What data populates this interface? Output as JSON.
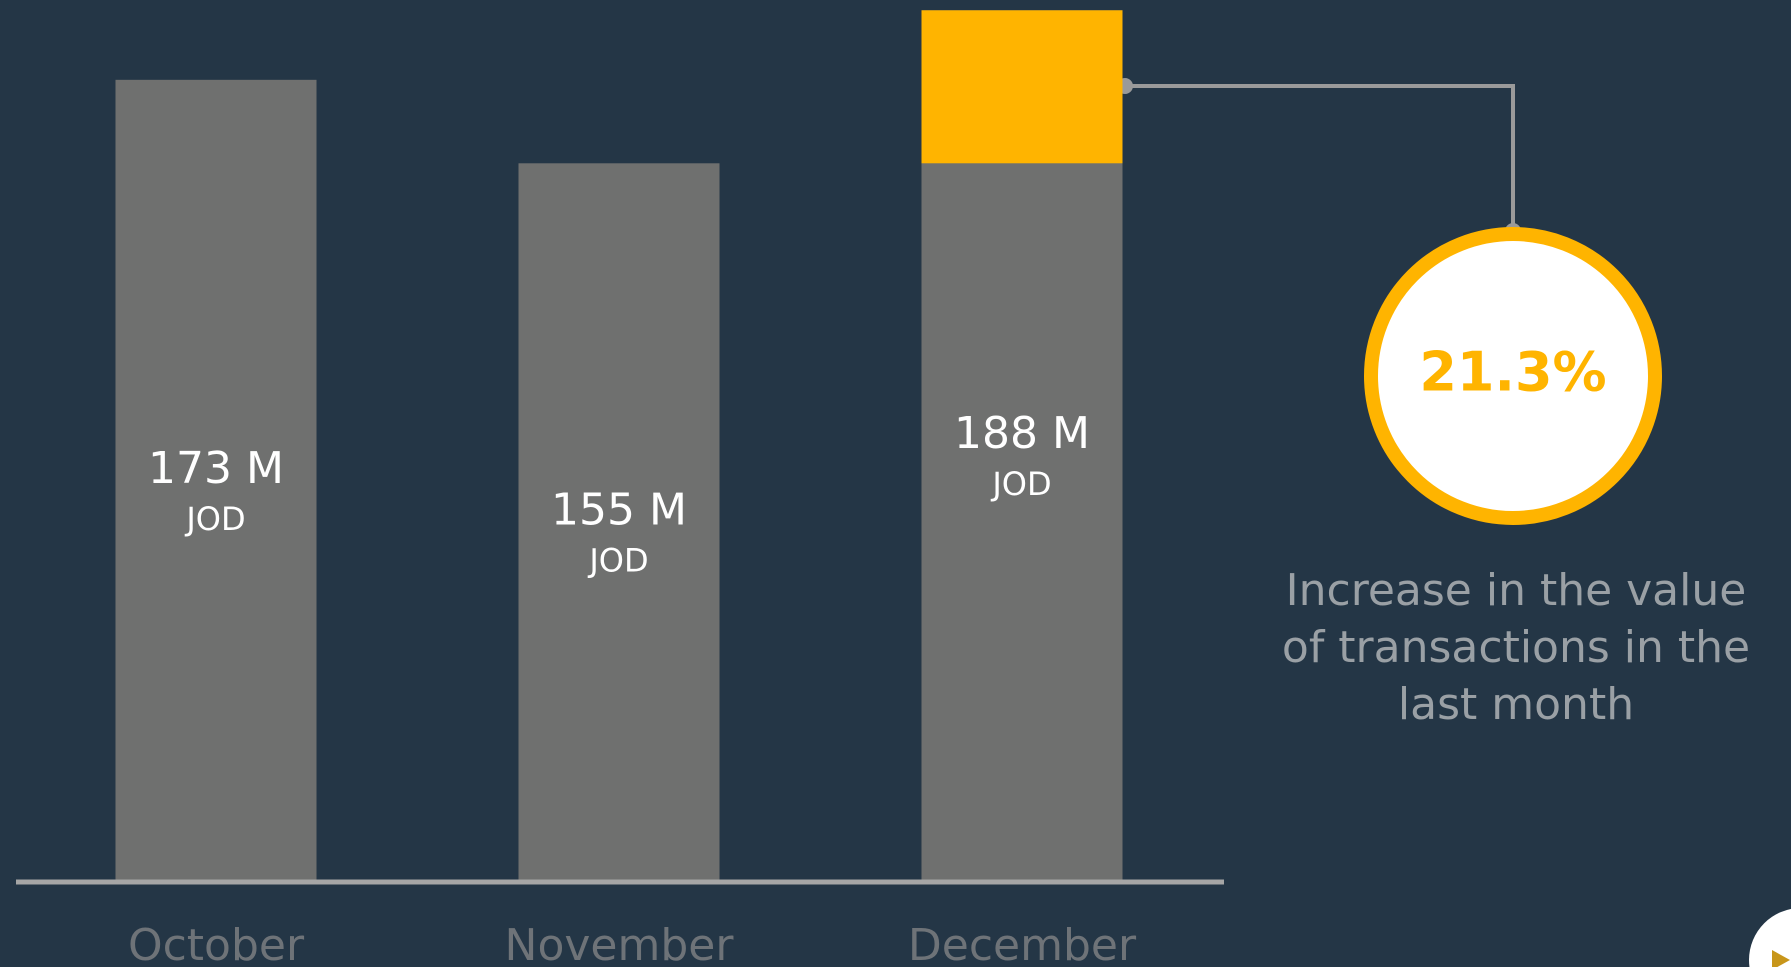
{
  "chart_data": {
    "type": "bar",
    "categories": [
      "October",
      "November",
      "December"
    ],
    "values": [
      173,
      155,
      188
    ],
    "value_labels": [
      "173 M",
      "155 M",
      "188 M"
    ],
    "unit_label": "JOD",
    "color": "#6f706f",
    "highlight_color": "#ffb400",
    "ylim": [
      0,
      190
    ],
    "annotation": {
      "value": 21.3,
      "label": "21.3%",
      "text": "Increase in the value of transactions in the last month"
    }
  }
}
